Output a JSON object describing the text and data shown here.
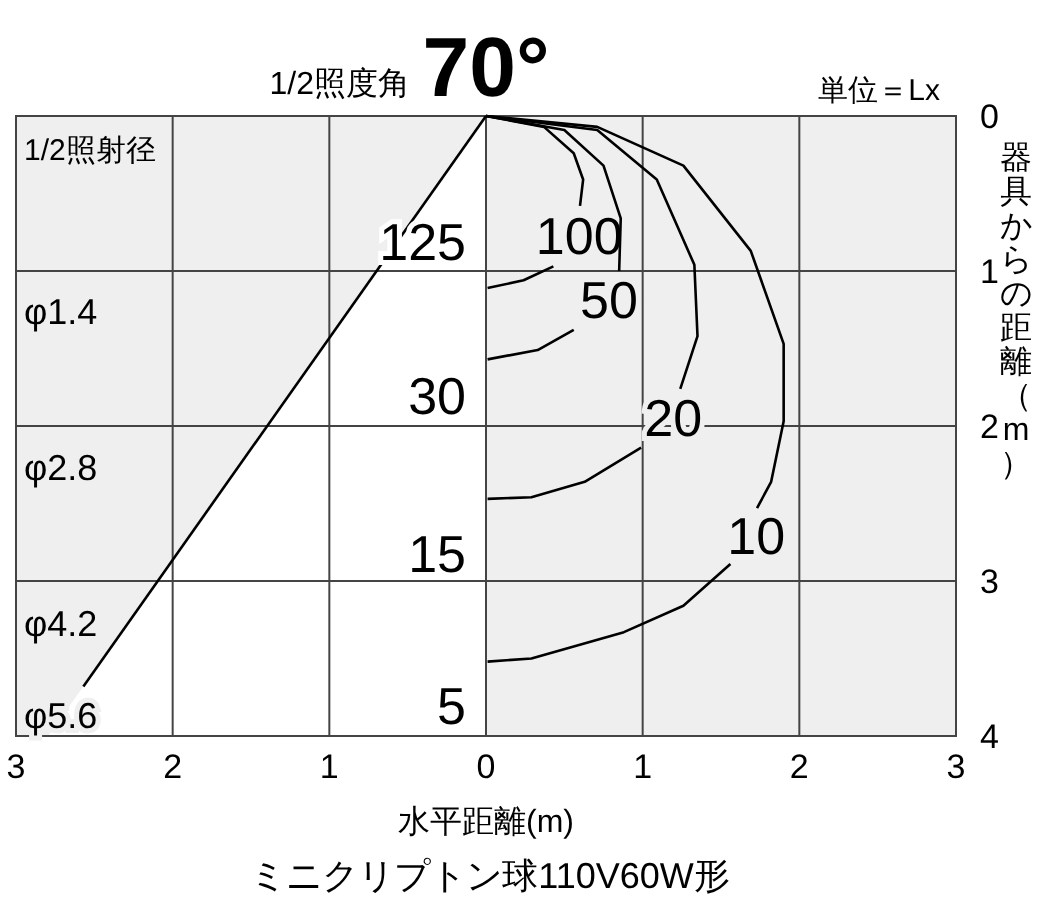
{
  "chart_data": {
    "type": "line",
    "title": "70°",
    "xlabel": "水平距離(m)",
    "ylabel": "器具からの距離（m）",
    "annotations": [
      "1/2照度角",
      "単位＝Lx",
      "ミニクリプトン球110V60W形",
      "1/2照射径",
      "125",
      "30",
      "15",
      "5",
      "φ1.4",
      "φ2.8",
      "φ4.2",
      "φ5.6"
    ],
    "xlim": [
      -3,
      3
    ],
    "ylim": [
      4,
      0
    ],
    "xticks": [
      {
        "value": -3,
        "label": "3"
      },
      {
        "value": -2,
        "label": "2"
      },
      {
        "value": -1,
        "label": "1"
      },
      0,
      1,
      2,
      3
    ],
    "yticks": [
      0,
      1,
      2,
      3,
      4
    ],
    "grid": true,
    "marker": "none",
    "line_style": "solid",
    "bands": [
      {
        "axis": "x",
        "from": 0,
        "to": 3,
        "color": "#efefef"
      }
    ],
    "series": [
      {
        "name": "100",
        "color": "#000000",
        "x": [
          0,
          0.37,
          0.56,
          0.62,
          0.6,
          null,
          0.43,
          0.24,
          0.01
        ],
        "values": [
          0,
          0.07,
          0.24,
          0.41,
          0.58,
          null,
          0.97,
          1.06,
          1.11
        ]
      },
      {
        "name": "50",
        "color": "#000000",
        "x": [
          0,
          0.5,
          0.75,
          0.86,
          0.85,
          null,
          0.56,
          0.33,
          0.01
        ],
        "values": [
          0,
          0.09,
          0.32,
          0.66,
          1.0,
          null,
          1.38,
          1.51,
          1.57
        ]
      },
      {
        "name": "20",
        "color": "#000000",
        "x": [
          0,
          0.71,
          1.09,
          1.33,
          1.35,
          1.24,
          null,
          0.99,
          0.63,
          0.29,
          0.01
        ],
        "values": [
          0,
          0.09,
          0.41,
          0.96,
          1.42,
          1.76,
          null,
          2.14,
          2.36,
          2.46,
          2.47
        ]
      },
      {
        "name": "10",
        "color": "#000000",
        "x": [
          0,
          0.71,
          1.26,
          1.69,
          1.9,
          1.9,
          1.82,
          1.73,
          null,
          1.56,
          1.26,
          0.88,
          0.29,
          0.01
        ],
        "values": [
          0,
          0.07,
          0.32,
          0.87,
          1.47,
          1.97,
          2.36,
          2.53,
          null,
          2.89,
          3.16,
          3.33,
          3.5,
          3.52
        ]
      },
      {
        "color": "#000000",
        "x": [
          0,
          -2.57
        ],
        "values": [
          0,
          3.68
        ]
      }
    ]
  }
}
